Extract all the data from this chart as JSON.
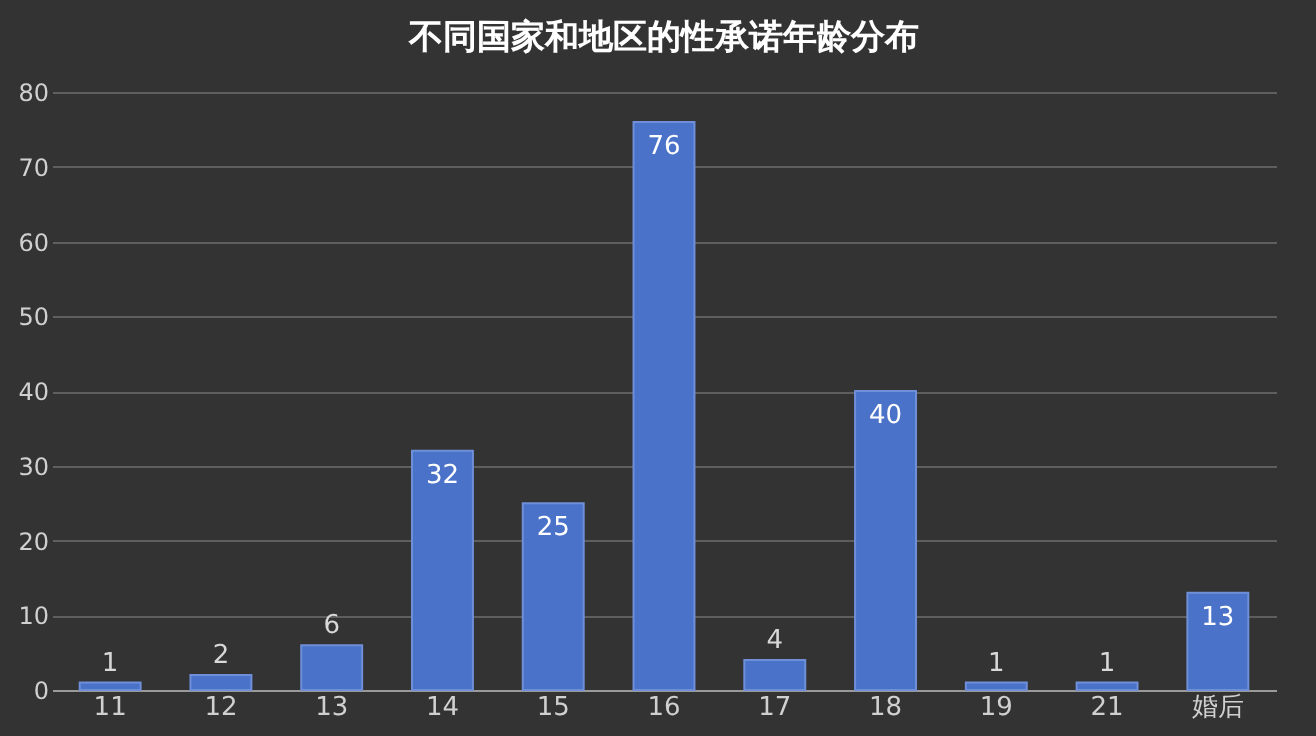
{
  "chart_data": {
    "type": "bar",
    "title": "不同国家和地区的性承诺年龄分布",
    "categories": [
      "11",
      "12",
      "13",
      "14",
      "15",
      "16",
      "17",
      "18",
      "19",
      "21",
      "婚后"
    ],
    "values": [
      1,
      2,
      6,
      32,
      25,
      76,
      4,
      40,
      1,
      1,
      13
    ],
    "color": "#4a72c8",
    "ylim": [
      0,
      80
    ],
    "yticks": [
      0,
      10,
      20,
      30,
      40,
      50,
      60,
      70,
      80
    ],
    "grid": "y",
    "data_labels": true
  }
}
